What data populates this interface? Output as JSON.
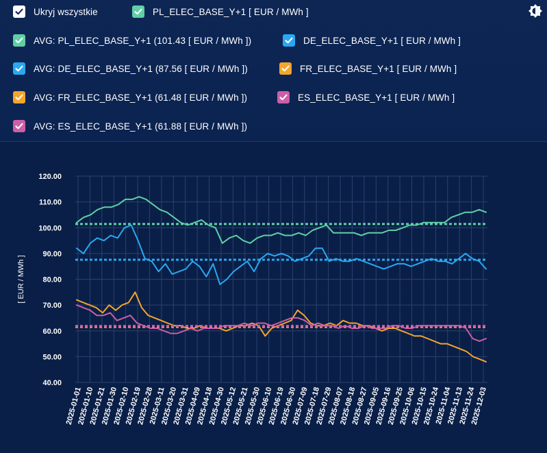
{
  "legend": {
    "hide_all": {
      "label": "Ukryj wszystkie",
      "color": "#ffffff"
    },
    "items": [
      {
        "label": "PL_ELEC_BASE_Y+1 [ EUR / MWh ]",
        "color": "#5fd0a5"
      },
      {
        "label": "AVG: PL_ELEC_BASE_Y+1 (101.43 [ EUR / MWh ])",
        "color": "#5fd0a5"
      },
      {
        "label": "DE_ELEC_BASE_Y+1 [ EUR / MWh ]",
        "color": "#2aa8f2"
      },
      {
        "label": "AVG: DE_ELEC_BASE_Y+1 (87.56 [ EUR / MWh ])",
        "color": "#2aa8f2"
      },
      {
        "label": "FR_ELEC_BASE_Y+1 [ EUR / MWh ]",
        "color": "#f4a52c"
      },
      {
        "label": "AVG: FR_ELEC_BASE_Y+1 (61.48 [ EUR / MWh ])",
        "color": "#f4a52c"
      },
      {
        "label": "ES_ELEC_BASE_Y+1 [ EUR / MWh ]",
        "color": "#cc5fa6"
      },
      {
        "label": "AVG: ES_ELEC_BASE_Y+1 (61.88 [ EUR / MWh ])",
        "color": "#cc5fa6"
      }
    ],
    "theme_icon": "brightness-icon"
  },
  "chart_data": {
    "type": "line",
    "ylabel": "[ EUR / MWh ]",
    "ylim": [
      40,
      120
    ],
    "y_ticks": [
      "40.00",
      "50.00",
      "60.00",
      "70.00",
      "80.00",
      "90.00",
      "100.00",
      "110.00",
      "120.00"
    ],
    "x_ticks": [
      "2025-01-01",
      "2025-01-10",
      "2025-01-21",
      "2025-01-30",
      "2025-02-10",
      "2025-02-19",
      "2025-02-28",
      "2025-03-11",
      "2025-03-20",
      "2025-03-31",
      "2025-04-09",
      "2025-04-18",
      "2025-04-30",
      "2025-05-12",
      "2025-05-21",
      "2025-05-30",
      "2025-06-10",
      "2025-06-19",
      "2025-06-30",
      "2025-07-09",
      "2025-07-18",
      "2025-07-29",
      "2025-08-07",
      "2025-08-18",
      "2025-08-27",
      "2025-09-05",
      "2025-09-16",
      "2025-09-25",
      "2025-10-06",
      "2025-10-15",
      "2025-10-24",
      "2025-11-04",
      "2025-11-13",
      "2025-11-24",
      "2025-12-03"
    ],
    "grid": true,
    "series": [
      {
        "name": "PL_ELEC_BASE_Y+1 [ EUR / MWh ]",
        "color": "#5fd0a5",
        "values": [
          102,
          104,
          105,
          107,
          108,
          108,
          109,
          111,
          111,
          112,
          111,
          109,
          107,
          106,
          104,
          102,
          101,
          102,
          103,
          101,
          100,
          94,
          96,
          97,
          95,
          94,
          96,
          97,
          97,
          98,
          97,
          97,
          98,
          97,
          99,
          100,
          101,
          98,
          98,
          98,
          98,
          97,
          98,
          98,
          98,
          99,
          99,
          100,
          101,
          101,
          102,
          102,
          102,
          102,
          104,
          105,
          106,
          106,
          107,
          106
        ]
      },
      {
        "name": "AVG: PL_ELEC_BASE_Y+1 (101.43 [ EUR / MWh ])",
        "color": "#5fd0a5",
        "dashed": true,
        "values": [
          101.43
        ]
      },
      {
        "name": "DE_ELEC_BASE_Y+1 [ EUR / MWh ]",
        "color": "#2aa8f2",
        "values": [
          92,
          90,
          94,
          96,
          95,
          97,
          96,
          100,
          101,
          95,
          88,
          87,
          83,
          86,
          82,
          83,
          84,
          87,
          85,
          81,
          86,
          78,
          80,
          83,
          85,
          87,
          83,
          88,
          90,
          89,
          90,
          89,
          87,
          88,
          89,
          92,
          92,
          87,
          88,
          87,
          87,
          88,
          87,
          86,
          85,
          84,
          85,
          86,
          86,
          85,
          86,
          87,
          88,
          87,
          87,
          86,
          88,
          90,
          88,
          87,
          84
        ]
      },
      {
        "name": "AVG: DE_ELEC_BASE_Y+1 (87.56 [ EUR / MWh ])",
        "color": "#2aa8f2",
        "dashed": true,
        "values": [
          87.56
        ]
      },
      {
        "name": "FR_ELEC_BASE_Y+1 [ EUR / MWh ]",
        "color": "#f4a52c",
        "values": [
          72,
          71,
          70,
          69,
          67,
          70,
          68,
          70,
          71,
          75,
          69,
          66,
          65,
          64,
          63,
          62,
          62,
          61,
          61,
          62,
          61,
          61,
          61,
          60,
          61,
          62,
          62,
          63,
          62,
          58,
          61,
          62,
          63,
          64,
          68,
          66,
          63,
          62,
          62,
          63,
          62,
          64,
          63,
          63,
          62,
          62,
          61,
          60,
          61,
          61,
          60,
          59,
          58,
          58,
          57,
          56,
          55,
          55,
          54,
          53,
          52,
          50,
          49,
          48
        ]
      },
      {
        "name": "AVG: FR_ELEC_BASE_Y+1 (61.48 [ EUR / MWh ])",
        "color": "#f4a52c",
        "dashed": true,
        "values": [
          61.48
        ]
      },
      {
        "name": "ES_ELEC_BASE_Y+1 [ EUR / MWh ]",
        "color": "#cc5fa6",
        "values": [
          70,
          69,
          68,
          66,
          66,
          67,
          64,
          65,
          66,
          63,
          62,
          61,
          61,
          60,
          59,
          59,
          60,
          61,
          60,
          61,
          61,
          61,
          62,
          62,
          62,
          63,
          62,
          63,
          63,
          62,
          63,
          64,
          65,
          65,
          64,
          62,
          63,
          62,
          62,
          61,
          62,
          61,
          61,
          62,
          61,
          61,
          61,
          62,
          62,
          61,
          61,
          62,
          62,
          62,
          62,
          62,
          62,
          62,
          61,
          57,
          56,
          57
        ]
      },
      {
        "name": "AVG: ES_ELEC_BASE_Y+1 (61.88 [ EUR / MWh ])",
        "color": "#cc5fa6",
        "dashed": true,
        "values": [
          61.88
        ]
      }
    ]
  }
}
